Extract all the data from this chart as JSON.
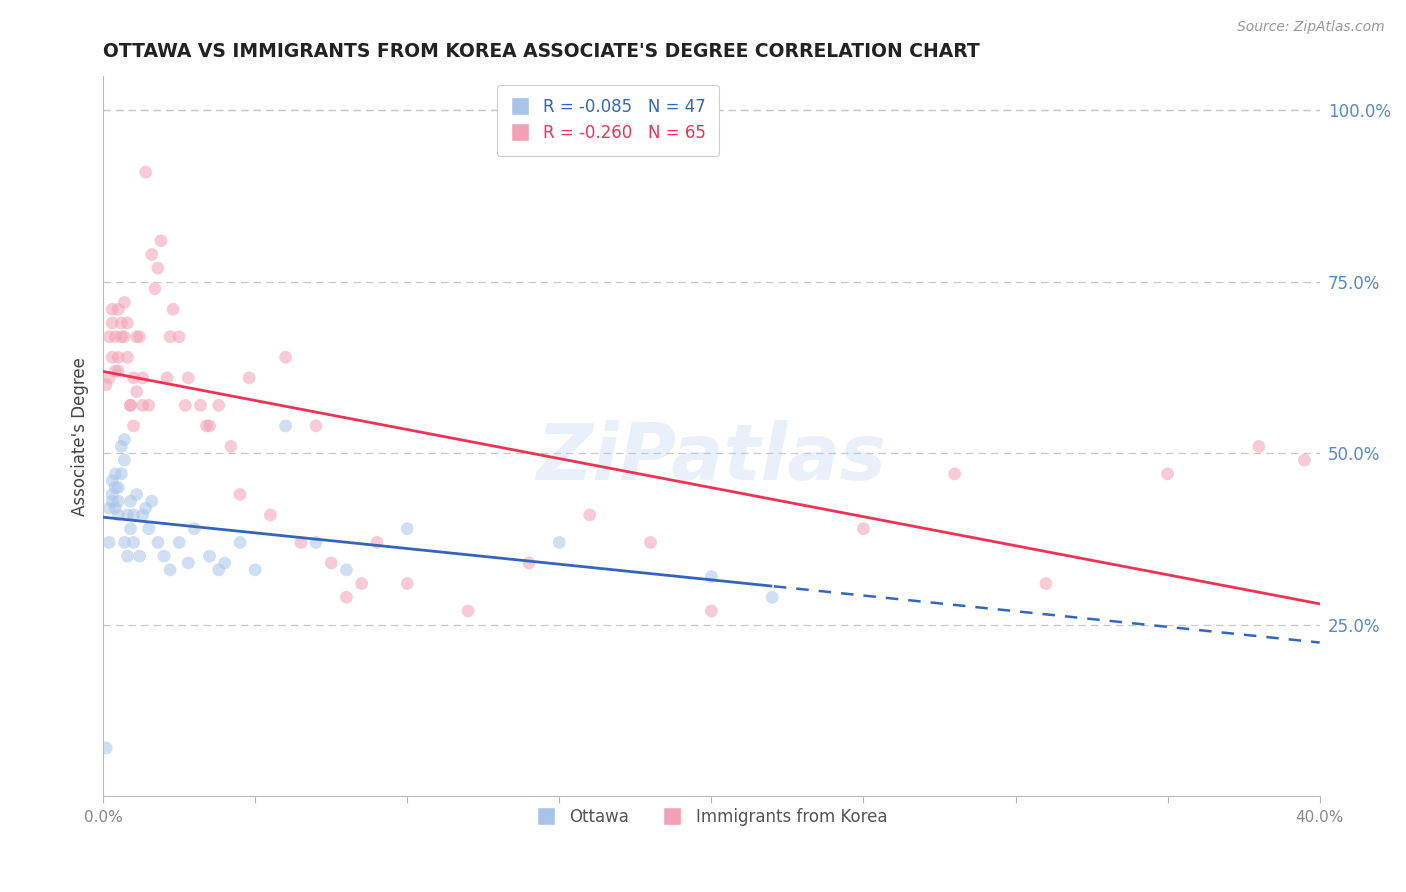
{
  "title": "OTTAWA VS IMMIGRANTS FROM KOREA ASSOCIATE'S DEGREE CORRELATION CHART",
  "source": "Source: ZipAtlas.com",
  "ylabel": "Associate's Degree",
  "ytick_labels": [
    "100.0%",
    "75.0%",
    "50.0%",
    "25.0%"
  ],
  "ytick_positions": [
    1.0,
    0.75,
    0.5,
    0.25
  ],
  "xlim": [
    0.0,
    0.4
  ],
  "ylim": [
    0.0,
    1.05
  ],
  "ottawa_x": [
    0.001,
    0.002,
    0.002,
    0.003,
    0.003,
    0.003,
    0.004,
    0.004,
    0.004,
    0.005,
    0.005,
    0.005,
    0.006,
    0.006,
    0.007,
    0.007,
    0.007,
    0.008,
    0.008,
    0.009,
    0.009,
    0.01,
    0.01,
    0.011,
    0.012,
    0.013,
    0.014,
    0.015,
    0.016,
    0.018,
    0.02,
    0.022,
    0.025,
    0.028,
    0.03,
    0.035,
    0.038,
    0.04,
    0.045,
    0.05,
    0.06,
    0.07,
    0.08,
    0.1,
    0.15,
    0.2,
    0.22
  ],
  "ottawa_y": [
    0.07,
    0.42,
    0.37,
    0.44,
    0.43,
    0.46,
    0.42,
    0.45,
    0.47,
    0.43,
    0.41,
    0.45,
    0.47,
    0.51,
    0.49,
    0.52,
    0.37,
    0.35,
    0.41,
    0.39,
    0.43,
    0.37,
    0.41,
    0.44,
    0.35,
    0.41,
    0.42,
    0.39,
    0.43,
    0.37,
    0.35,
    0.33,
    0.37,
    0.34,
    0.39,
    0.35,
    0.33,
    0.34,
    0.37,
    0.33,
    0.54,
    0.37,
    0.33,
    0.39,
    0.37,
    0.32,
    0.29
  ],
  "korea_x": [
    0.001,
    0.002,
    0.002,
    0.003,
    0.003,
    0.003,
    0.004,
    0.004,
    0.005,
    0.005,
    0.005,
    0.006,
    0.006,
    0.007,
    0.007,
    0.008,
    0.008,
    0.009,
    0.009,
    0.01,
    0.01,
    0.011,
    0.011,
    0.012,
    0.013,
    0.013,
    0.014,
    0.015,
    0.016,
    0.017,
    0.018,
    0.019,
    0.021,
    0.022,
    0.023,
    0.025,
    0.027,
    0.028,
    0.032,
    0.034,
    0.035,
    0.038,
    0.042,
    0.045,
    0.048,
    0.055,
    0.06,
    0.065,
    0.07,
    0.075,
    0.08,
    0.085,
    0.09,
    0.1,
    0.12,
    0.14,
    0.16,
    0.18,
    0.2,
    0.25,
    0.28,
    0.31,
    0.35,
    0.38,
    0.395
  ],
  "korea_y": [
    0.6,
    0.61,
    0.67,
    0.64,
    0.69,
    0.71,
    0.67,
    0.62,
    0.64,
    0.62,
    0.71,
    0.69,
    0.67,
    0.72,
    0.67,
    0.64,
    0.69,
    0.57,
    0.57,
    0.54,
    0.61,
    0.59,
    0.67,
    0.67,
    0.61,
    0.57,
    0.91,
    0.57,
    0.79,
    0.74,
    0.77,
    0.81,
    0.61,
    0.67,
    0.71,
    0.67,
    0.57,
    0.61,
    0.57,
    0.54,
    0.54,
    0.57,
    0.51,
    0.44,
    0.61,
    0.41,
    0.64,
    0.37,
    0.54,
    0.34,
    0.29,
    0.31,
    0.37,
    0.31,
    0.27,
    0.34,
    0.41,
    0.37,
    0.27,
    0.39,
    0.47,
    0.31,
    0.47,
    0.51,
    0.49
  ],
  "watermark": "ZiPatlas",
  "bg_color": "#ffffff",
  "grid_color": "#c8c8c8",
  "scatter_alpha": 0.55,
  "scatter_size": 85,
  "ottawa_color": "#a8c4e8",
  "korea_color": "#f4a0b4",
  "ottawa_line_color": "#3366bb",
  "korea_line_color": "#ee3355",
  "ytick_color": "#5588cc",
  "xtick_color": "#888888",
  "title_color": "#222222",
  "title_fontsize": 13.5,
  "ylabel_fontsize": 12,
  "source_fontsize": 10,
  "legend_r1": "R = -0.085   N = 47",
  "legend_r2": "R = -0.260   N = 65",
  "legend_series1": "Ottawa",
  "legend_series2": "Immigrants from Korea"
}
